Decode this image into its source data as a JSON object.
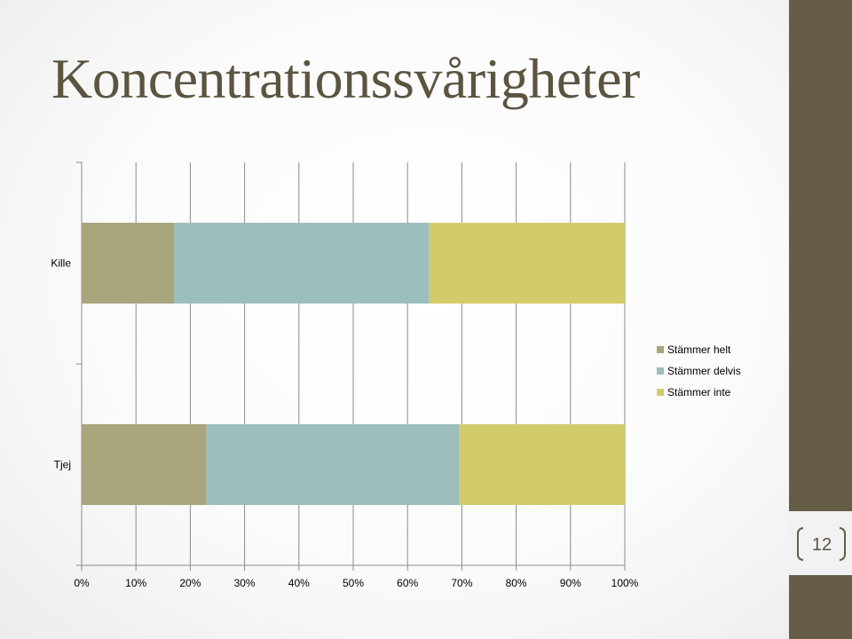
{
  "slide": {
    "title": "Koncentrationssvårigheter",
    "number": "12",
    "colors": {
      "accent_dark": "#655d48",
      "title_text": "#5b5440"
    }
  },
  "chart_data": {
    "type": "bar",
    "orientation": "horizontal",
    "stacked": "percent",
    "title": "",
    "xlabel": "",
    "ylabel": "",
    "categories": [
      "Kille",
      "Tjej"
    ],
    "series": [
      {
        "name": "Stämmer helt",
        "color": "#a9a57c",
        "values": [
          17,
          23
        ]
      },
      {
        "name": "Stämmer delvis",
        "color": "#9cbebd",
        "values": [
          47,
          46.5
        ]
      },
      {
        "name": "Stämmer inte",
        "color": "#d2cb6c",
        "values": [
          36,
          30.5
        ]
      }
    ],
    "xlim": [
      0,
      100
    ],
    "xticks": [
      "0%",
      "10%",
      "20%",
      "30%",
      "40%",
      "50%",
      "60%",
      "70%",
      "80%",
      "90%",
      "100%"
    ],
    "grid": true,
    "legend": "right"
  }
}
